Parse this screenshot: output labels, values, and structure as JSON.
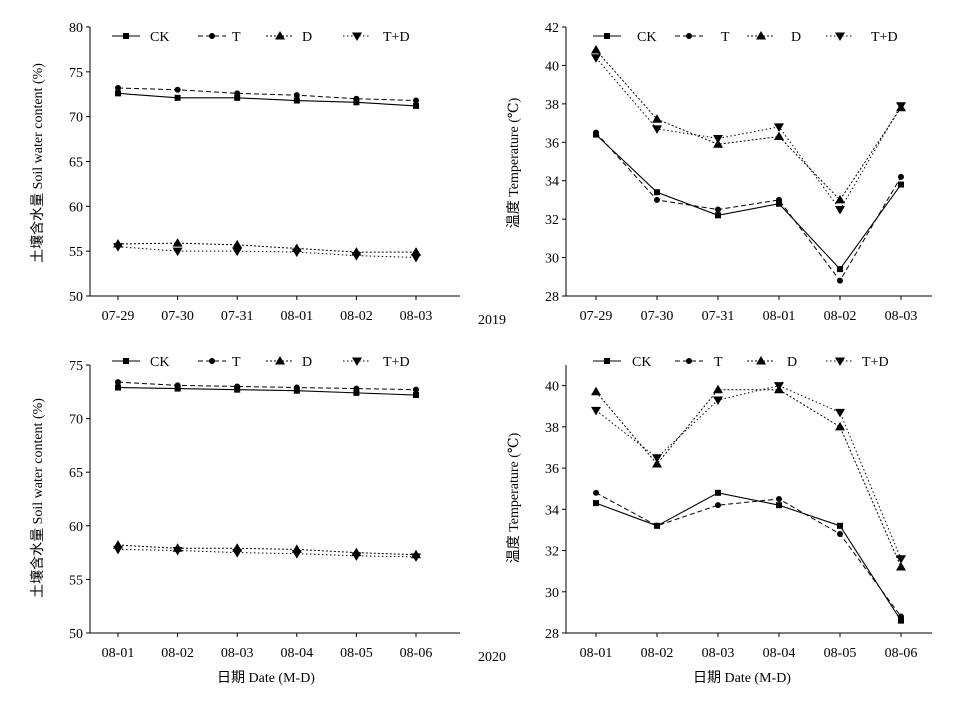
{
  "year_labels": [
    "2019",
    "2020"
  ],
  "chart_data": [
    {
      "type": "line",
      "ylabel": "土壤含水量 Soil water content (%)",
      "xlabel": "",
      "categories": [
        "07-29",
        "07-30",
        "07-31",
        "08-01",
        "08-02",
        "08-03"
      ],
      "ylim": [
        50,
        80
      ],
      "yticks": [
        "50",
        "55",
        "60",
        "65",
        "70",
        "75",
        "80"
      ],
      "legend": "top",
      "grid": false,
      "series": [
        {
          "name": "CK",
          "marker": "square",
          "values": [
            72.6,
            72.1,
            72.1,
            71.8,
            71.6,
            71.2
          ]
        },
        {
          "name": "T",
          "marker": "circle",
          "values": [
            73.2,
            73.0,
            72.6,
            72.4,
            72.0,
            71.8
          ]
        },
        {
          "name": "D",
          "marker": "triangle-up",
          "values": [
            55.8,
            55.9,
            55.7,
            55.3,
            54.9,
            54.9
          ]
        },
        {
          "name": "T+D",
          "marker": "triangle-down",
          "values": [
            55.5,
            55.0,
            55.0,
            54.9,
            54.5,
            54.3
          ]
        }
      ]
    },
    {
      "type": "line",
      "ylabel": "温度 Temperature (℃)",
      "xlabel": "",
      "categories": [
        "07-29",
        "07-30",
        "07-31",
        "08-01",
        "08-02",
        "08-03"
      ],
      "ylim": [
        28,
        42
      ],
      "yticks": [
        "28",
        "30",
        "32",
        "34",
        "36",
        "38",
        "40",
        "42"
      ],
      "legend": "top",
      "grid": false,
      "series": [
        {
          "name": "CK",
          "marker": "square",
          "values": [
            36.4,
            33.4,
            32.2,
            32.8,
            29.4,
            33.8
          ]
        },
        {
          "name": "T",
          "marker": "circle",
          "values": [
            36.5,
            33.0,
            32.5,
            33.0,
            28.8,
            34.2
          ]
        },
        {
          "name": "D",
          "marker": "triangle-up",
          "values": [
            40.8,
            37.2,
            35.9,
            36.3,
            33.0,
            37.8
          ]
        },
        {
          "name": "T+D",
          "marker": "triangle-down",
          "values": [
            40.4,
            36.7,
            36.2,
            36.8,
            32.5,
            37.9
          ]
        }
      ]
    },
    {
      "type": "line",
      "ylabel": "土壤含水量 Soil water content (%)",
      "xlabel": "日期 Date (M-D)",
      "categories": [
        "08-01",
        "08-02",
        "08-03",
        "08-04",
        "08-05",
        "08-06"
      ],
      "ylim": [
        50,
        75
      ],
      "yticks": [
        "50",
        "55",
        "60",
        "65",
        "70",
        "75"
      ],
      "legend": "top",
      "grid": false,
      "series": [
        {
          "name": "CK",
          "marker": "square",
          "values": [
            72.9,
            72.8,
            72.7,
            72.6,
            72.4,
            72.2
          ]
        },
        {
          "name": "T",
          "marker": "circle",
          "values": [
            73.4,
            73.1,
            73.0,
            72.9,
            72.8,
            72.7
          ]
        },
        {
          "name": "D",
          "marker": "triangle-up",
          "values": [
            58.2,
            57.9,
            57.9,
            57.8,
            57.5,
            57.3
          ]
        },
        {
          "name": "T+D",
          "marker": "triangle-down",
          "values": [
            57.8,
            57.7,
            57.5,
            57.4,
            57.2,
            57.1
          ]
        }
      ]
    },
    {
      "type": "line",
      "ylabel": "温度 Temperature (℃)",
      "xlabel": "日期 Date (M-D)",
      "categories": [
        "08-01",
        "08-02",
        "08-03",
        "08-04",
        "08-05",
        "08-06"
      ],
      "ylim": [
        28,
        41
      ],
      "yticks": [
        "28",
        "30",
        "32",
        "34",
        "36",
        "38",
        "40"
      ],
      "legend": "top",
      "grid": false,
      "series": [
        {
          "name": "CK",
          "marker": "square",
          "values": [
            34.3,
            33.2,
            34.8,
            34.2,
            33.2,
            28.6
          ]
        },
        {
          "name": "T",
          "marker": "circle",
          "values": [
            34.8,
            33.2,
            34.2,
            34.5,
            32.8,
            28.8
          ]
        },
        {
          "name": "D",
          "marker": "triangle-up",
          "values": [
            39.7,
            36.2,
            39.8,
            39.8,
            38.0,
            31.2
          ]
        },
        {
          "name": "T+D",
          "marker": "triangle-down",
          "values": [
            38.8,
            36.5,
            39.3,
            40.0,
            38.7,
            31.6
          ]
        }
      ]
    }
  ]
}
